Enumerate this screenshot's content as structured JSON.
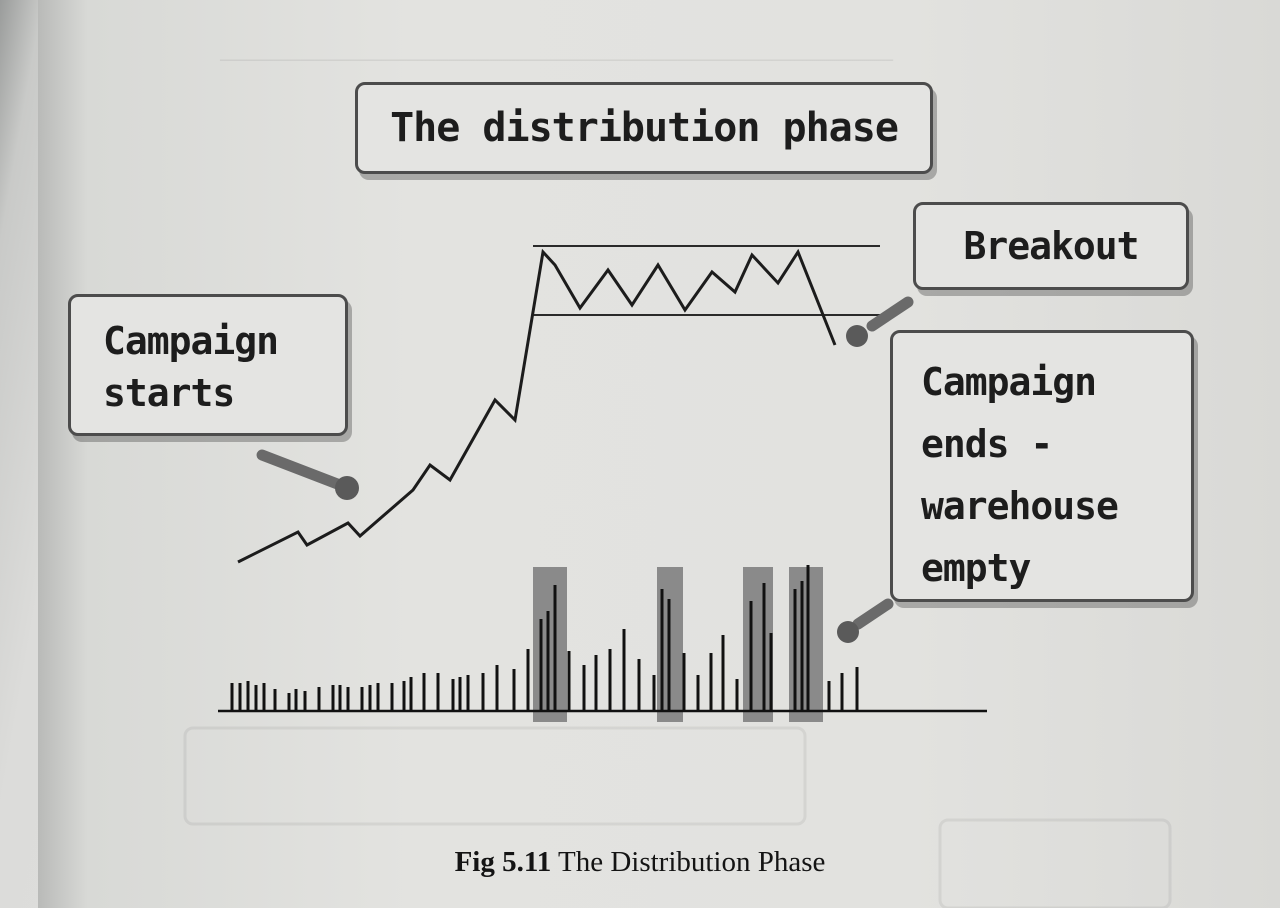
{
  "diagram": {
    "title": "The distribution phase",
    "callouts": {
      "campaign_starts": [
        "Campaign",
        "starts"
      ],
      "breakout": "Breakout",
      "campaign_ends": [
        "Campaign",
        "ends -",
        "warehouse",
        "empty"
      ]
    },
    "caption": {
      "number": "Fig 5.11",
      "text": "The Distribution Phase"
    },
    "colors": {
      "line": "#1c1c1c",
      "highlight": "#8a8a8a",
      "box_border": "#4c4c4c",
      "box_fill": "#e4e4e2"
    }
  }
}
